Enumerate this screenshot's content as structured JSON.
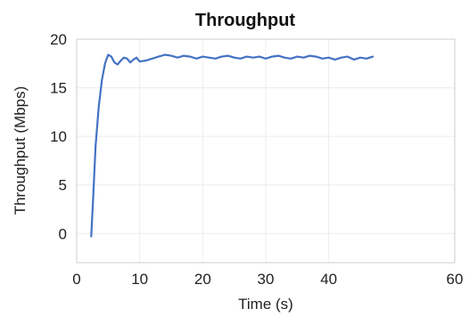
{
  "chart_data": {
    "type": "line",
    "title": "Throughput",
    "xlabel": "Time (s)",
    "ylabel": "Throughput (Mbps)",
    "xlim": [
      0,
      60
    ],
    "ylim": [
      -3,
      20
    ],
    "xticks": [
      0,
      10,
      20,
      30,
      40,
      60
    ],
    "yticks": [
      0,
      5,
      10,
      15,
      20
    ],
    "grid": true,
    "legend": "none",
    "series": [
      {
        "color": "#4472c4",
        "x": [
          2.3,
          2.6,
          3.0,
          3.5,
          4.0,
          4.5,
          5.0,
          5.5,
          6.0,
          6.5,
          7.0,
          7.5,
          8.0,
          8.5,
          9.0,
          9.5,
          10.0,
          11,
          12,
          13,
          14,
          15,
          16,
          17,
          18,
          19,
          20,
          21,
          22,
          23,
          24,
          25,
          26,
          27,
          28,
          29,
          30,
          31,
          32,
          33,
          34,
          35,
          36,
          37,
          38,
          39,
          40,
          41,
          42,
          43,
          44,
          45,
          46,
          47
        ],
        "y": [
          -0.3,
          3.5,
          9.0,
          13.0,
          15.8,
          17.5,
          18.4,
          18.2,
          17.6,
          17.4,
          17.8,
          18.1,
          18.0,
          17.6,
          17.9,
          18.1,
          17.7,
          17.8,
          18.0,
          18.2,
          18.4,
          18.3,
          18.1,
          18.3,
          18.2,
          18.0,
          18.2,
          18.1,
          18.0,
          18.2,
          18.3,
          18.1,
          18.0,
          18.2,
          18.1,
          18.2,
          18.0,
          18.2,
          18.3,
          18.1,
          18.0,
          18.2,
          18.1,
          18.3,
          18.2,
          18.0,
          18.1,
          17.9,
          18.1,
          18.2,
          17.9,
          18.1,
          18.0,
          18.2
        ]
      }
    ]
  }
}
